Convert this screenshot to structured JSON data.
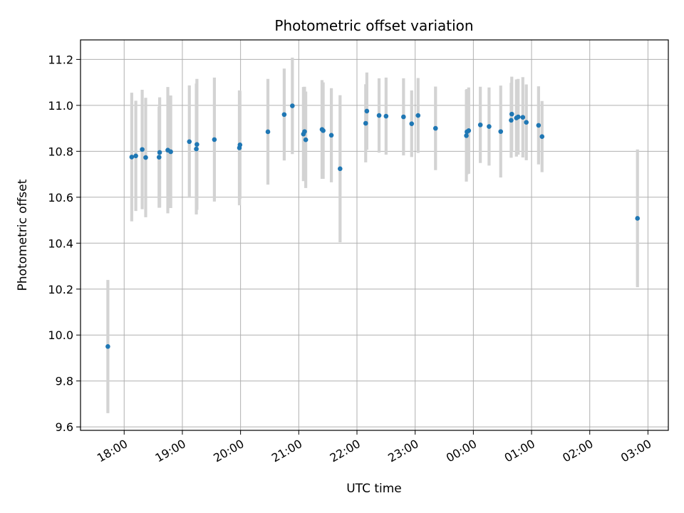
{
  "chart_data": {
    "type": "scatter",
    "title": "Photometric offset variation",
    "xlabel": "UTC time",
    "ylabel": "Photometric offset",
    "x_unit": "UTC time (hours; values past 24 are after midnight)",
    "xlim": [
      17.25,
      27.35
    ],
    "ylim": [
      9.585,
      11.285
    ],
    "x_ticks": [
      {
        "value": 18,
        "label": "18:00"
      },
      {
        "value": 19,
        "label": "19:00"
      },
      {
        "value": 20,
        "label": "20:00"
      },
      {
        "value": 21,
        "label": "21:00"
      },
      {
        "value": 22,
        "label": "22:00"
      },
      {
        "value": 23,
        "label": "23:00"
      },
      {
        "value": 24,
        "label": "00:00"
      },
      {
        "value": 25,
        "label": "01:00"
      },
      {
        "value": 26,
        "label": "02:00"
      },
      {
        "value": 27,
        "label": "03:00"
      }
    ],
    "y_ticks": [
      {
        "value": 9.6,
        "label": "9.6"
      },
      {
        "value": 9.8,
        "label": "9.8"
      },
      {
        "value": 10.0,
        "label": "10.0"
      },
      {
        "value": 10.2,
        "label": "10.2"
      },
      {
        "value": 10.4,
        "label": "10.4"
      },
      {
        "value": 10.6,
        "label": "10.6"
      },
      {
        "value": 10.8,
        "label": "10.8"
      },
      {
        "value": 11.0,
        "label": "11.0"
      },
      {
        "value": 11.2,
        "label": "11.2"
      }
    ],
    "grid": true,
    "colors": {
      "point": "#1f77b4",
      "errorbar": "#d3d3d3",
      "grid": "#b0b0b0"
    },
    "series": [
      {
        "points": [
          {
            "x": 17.72,
            "y": 9.95,
            "err": 0.29
          },
          {
            "x": 18.13,
            "y": 10.775,
            "err": 0.28
          },
          {
            "x": 18.2,
            "y": 10.78,
            "err": 0.24
          },
          {
            "x": 18.31,
            "y": 10.808,
            "err": 0.26
          },
          {
            "x": 18.37,
            "y": 10.773,
            "err": 0.26
          },
          {
            "x": 18.6,
            "y": 10.774,
            "err": 0.22
          },
          {
            "x": 18.61,
            "y": 10.795,
            "err": 0.24
          },
          {
            "x": 18.75,
            "y": 10.805,
            "err": 0.275
          },
          {
            "x": 18.8,
            "y": 10.798,
            "err": 0.245
          },
          {
            "x": 19.12,
            "y": 10.842,
            "err": 0.245
          },
          {
            "x": 19.24,
            "y": 10.81,
            "err": 0.285
          },
          {
            "x": 19.25,
            "y": 10.83,
            "err": 0.285
          },
          {
            "x": 19.55,
            "y": 10.851,
            "err": 0.27
          },
          {
            "x": 19.98,
            "y": 10.815,
            "err": 0.25
          },
          {
            "x": 19.99,
            "y": 10.828,
            "err": 0.235
          },
          {
            "x": 20.47,
            "y": 10.885,
            "err": 0.23
          },
          {
            "x": 20.75,
            "y": 10.96,
            "err": 0.2
          },
          {
            "x": 20.89,
            "y": 10.998,
            "err": 0.21
          },
          {
            "x": 21.08,
            "y": 10.875,
            "err": 0.205
          },
          {
            "x": 21.1,
            "y": 10.886,
            "err": 0.195
          },
          {
            "x": 21.12,
            "y": 10.85,
            "err": 0.21
          },
          {
            "x": 21.4,
            "y": 10.895,
            "err": 0.215
          },
          {
            "x": 21.42,
            "y": 10.89,
            "err": 0.21
          },
          {
            "x": 21.56,
            "y": 10.87,
            "err": 0.205
          },
          {
            "x": 21.71,
            "y": 10.724,
            "err": 0.32
          },
          {
            "x": 22.15,
            "y": 10.922,
            "err": 0.17
          },
          {
            "x": 22.17,
            "y": 10.975,
            "err": 0.168
          },
          {
            "x": 22.38,
            "y": 10.956,
            "err": 0.162
          },
          {
            "x": 22.5,
            "y": 10.953,
            "err": 0.168
          },
          {
            "x": 22.8,
            "y": 10.95,
            "err": 0.168
          },
          {
            "x": 22.94,
            "y": 10.92,
            "err": 0.145
          },
          {
            "x": 23.05,
            "y": 10.956,
            "err": 0.163
          },
          {
            "x": 23.35,
            "y": 10.9,
            "err": 0.182
          },
          {
            "x": 23.88,
            "y": 10.868,
            "err": 0.2
          },
          {
            "x": 23.89,
            "y": 10.885,
            "err": 0.186
          },
          {
            "x": 23.92,
            "y": 10.89,
            "err": 0.188
          },
          {
            "x": 24.12,
            "y": 10.915,
            "err": 0.166
          },
          {
            "x": 24.27,
            "y": 10.908,
            "err": 0.17
          },
          {
            "x": 24.47,
            "y": 10.886,
            "err": 0.2
          },
          {
            "x": 24.65,
            "y": 10.935,
            "err": 0.163
          },
          {
            "x": 24.66,
            "y": 10.962,
            "err": 0.163
          },
          {
            "x": 24.74,
            "y": 10.945,
            "err": 0.168
          },
          {
            "x": 24.77,
            "y": 10.95,
            "err": 0.165
          },
          {
            "x": 24.85,
            "y": 10.948,
            "err": 0.175
          },
          {
            "x": 24.91,
            "y": 10.926,
            "err": 0.165
          },
          {
            "x": 25.12,
            "y": 10.913,
            "err": 0.17
          },
          {
            "x": 25.18,
            "y": 10.864,
            "err": 0.155
          },
          {
            "x": 26.82,
            "y": 10.508,
            "err": 0.3
          }
        ]
      }
    ]
  }
}
